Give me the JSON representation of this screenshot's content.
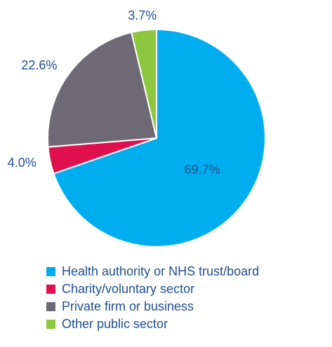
{
  "chart_data": {
    "type": "pie",
    "categories": [
      "Health authority or NHS trust/board",
      "Charity/voluntary sector",
      "Private firm or business",
      "Other public sector"
    ],
    "values": [
      69.7,
      4.0,
      22.6,
      3.7
    ],
    "value_labels": [
      "69.7%",
      "4.0%",
      "22.6%",
      "3.7%"
    ],
    "colors": [
      "#00aeef",
      "#e0104e",
      "#6d6a75",
      "#8dc63f"
    ]
  }
}
